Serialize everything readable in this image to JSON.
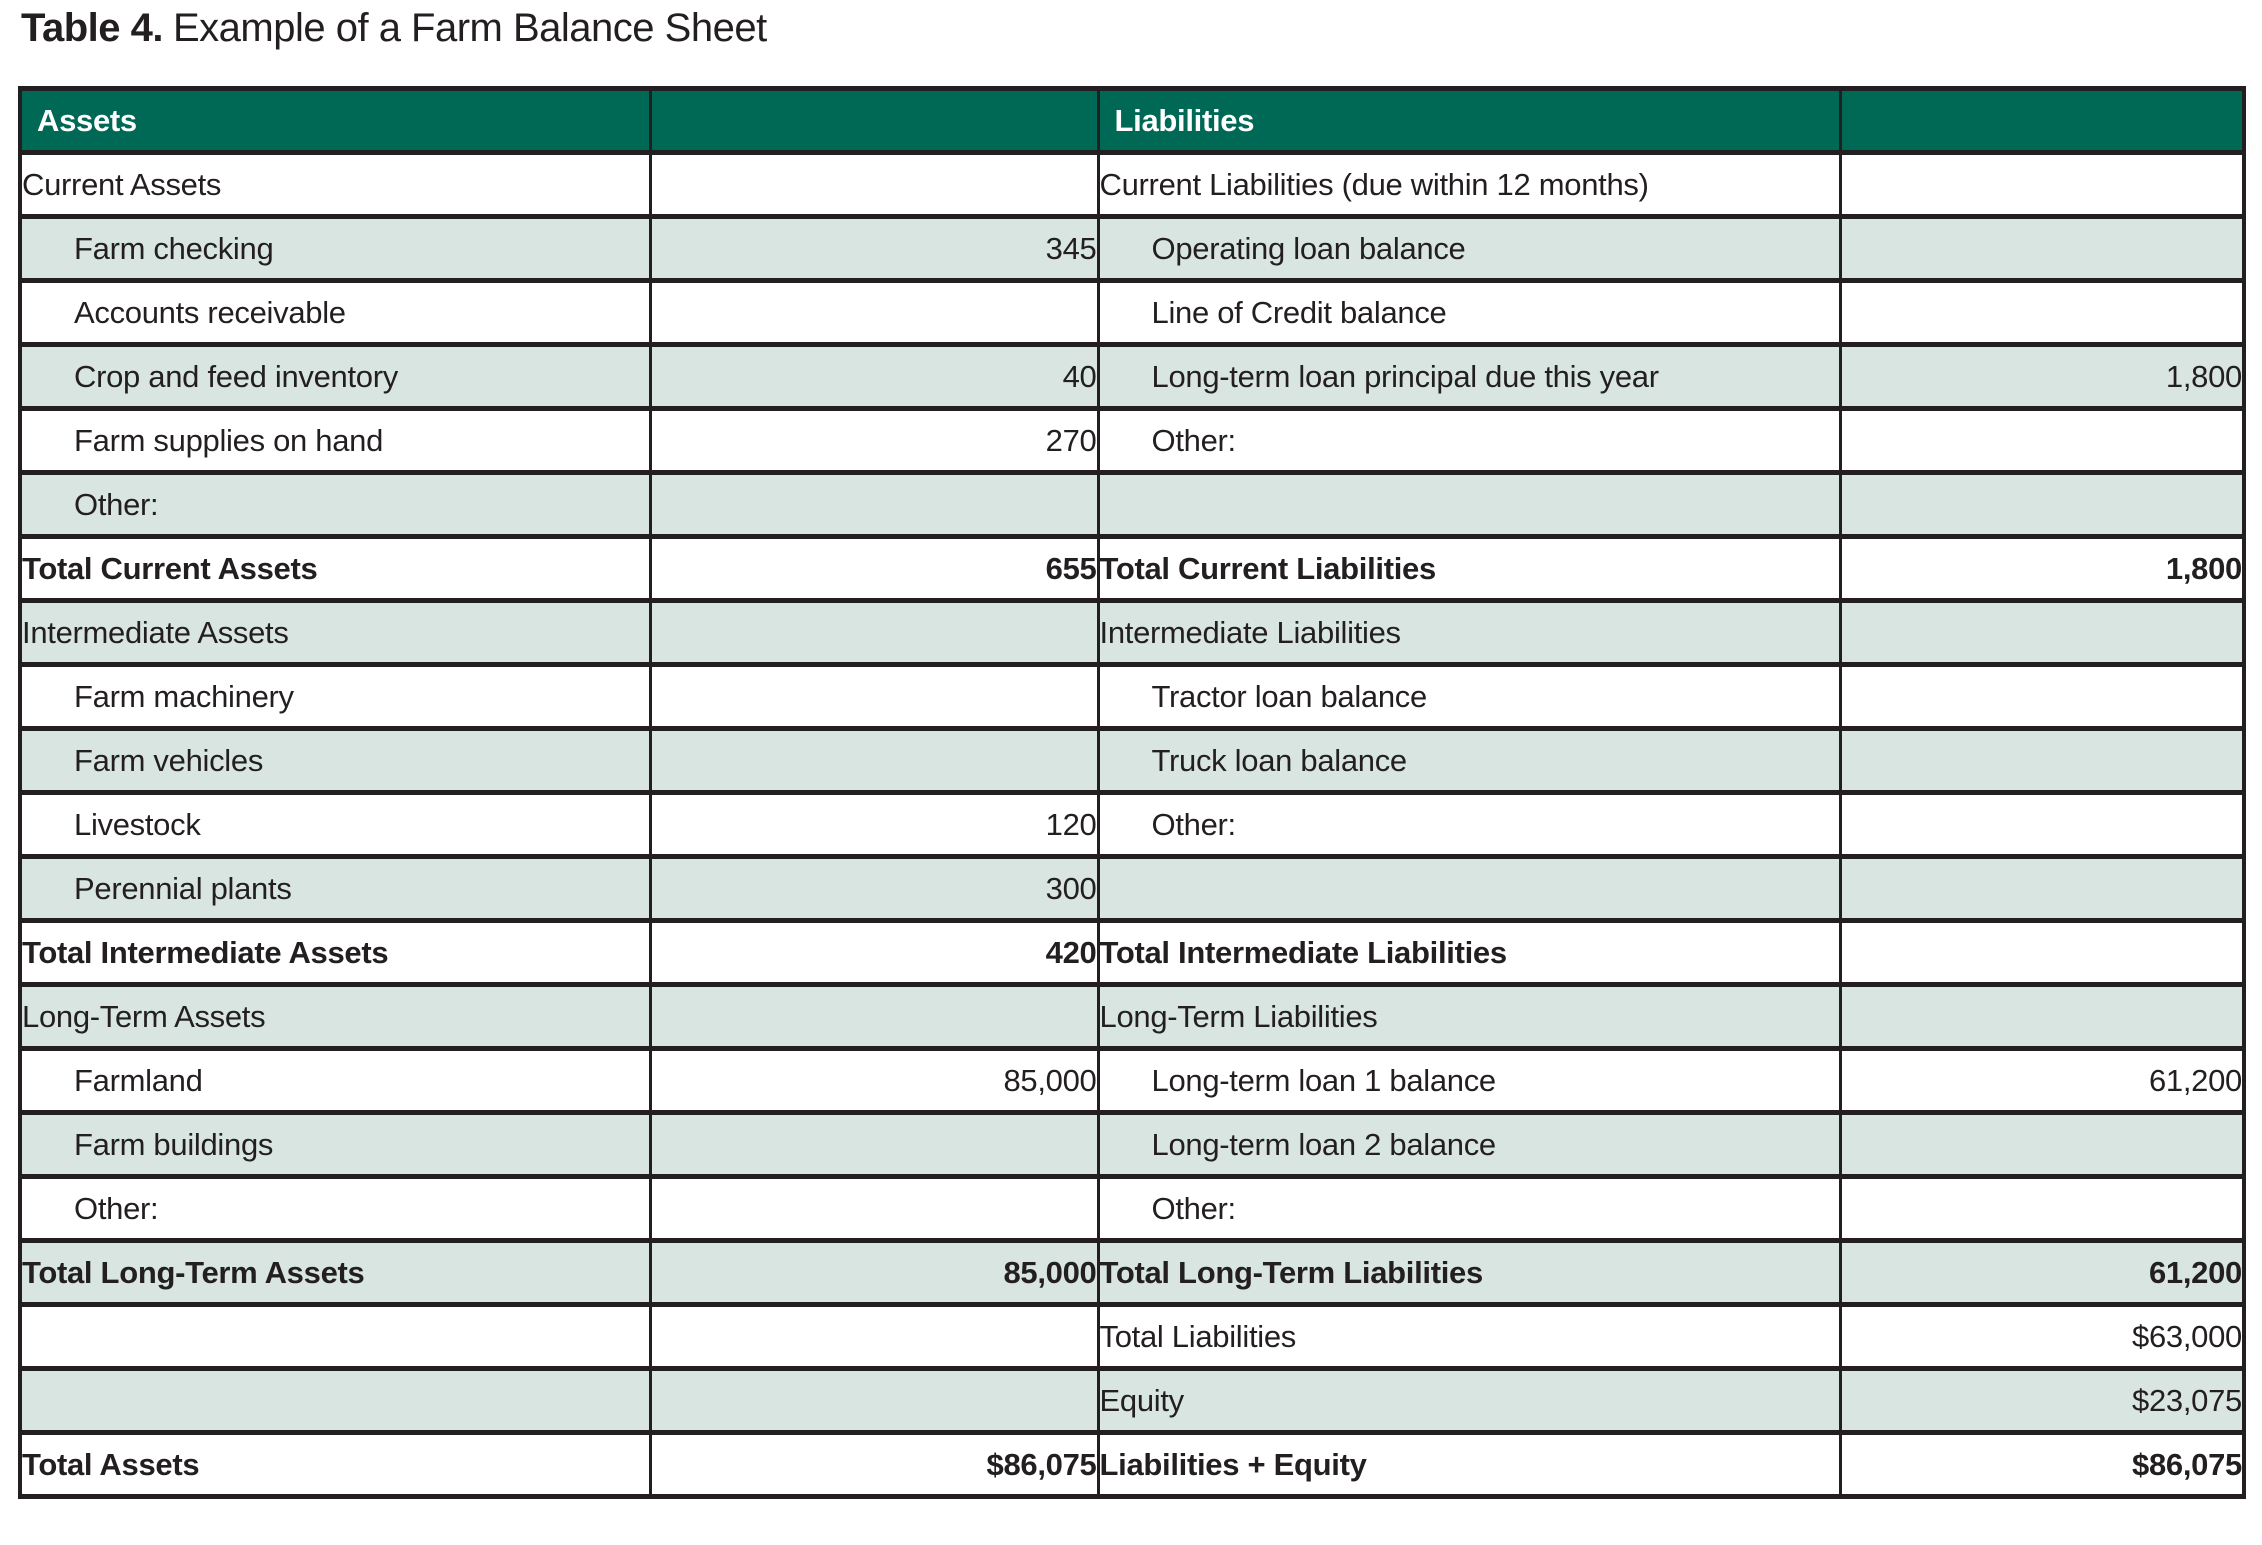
{
  "title": {
    "label": "Table 4.",
    "text": "Example of a Farm Balance Sheet"
  },
  "colors": {
    "header_bg": "#006956",
    "header_text": "#ffffff",
    "shaded_row_bg": "#d8e5e0",
    "plain_row_bg": "#ffffff",
    "border": "#231f20",
    "text": "#231f20"
  },
  "table": {
    "headers": {
      "assets": "Assets",
      "assets_value": "",
      "liabilities": "Liabilities",
      "liabilities_value": ""
    },
    "rows": [
      {
        "asset_label": "Current Assets",
        "asset_indent": false,
        "asset_value": "",
        "liability_label": "Current Liabilities (due within 12 months)",
        "liability_indent": false,
        "liability_value": "",
        "bold": false,
        "shaded": false
      },
      {
        "asset_label": "Farm checking",
        "asset_indent": true,
        "asset_value": "345",
        "liability_label": "Operating loan balance",
        "liability_indent": true,
        "liability_value": "",
        "bold": false,
        "shaded": true
      },
      {
        "asset_label": "Accounts receivable",
        "asset_indent": true,
        "asset_value": "",
        "liability_label": "Line of Credit balance",
        "liability_indent": true,
        "liability_value": "",
        "bold": false,
        "shaded": false
      },
      {
        "asset_label": "Crop and feed inventory",
        "asset_indent": true,
        "asset_value": "40",
        "liability_label": "Long-term loan principal due this year",
        "liability_indent": true,
        "liability_value": "1,800",
        "bold": false,
        "shaded": true
      },
      {
        "asset_label": "Farm supplies on hand",
        "asset_indent": true,
        "asset_value": "270",
        "liability_label": "Other:",
        "liability_indent": true,
        "liability_value": "",
        "bold": false,
        "shaded": false
      },
      {
        "asset_label": "Other:",
        "asset_indent": true,
        "asset_value": "",
        "liability_label": "",
        "liability_indent": false,
        "liability_value": "",
        "bold": false,
        "shaded": true
      },
      {
        "asset_label": "Total Current Assets",
        "asset_indent": false,
        "asset_value": "655",
        "liability_label": "Total Current Liabilities",
        "liability_indent": false,
        "liability_value": "1,800",
        "bold": true,
        "shaded": false
      },
      {
        "asset_label": "Intermediate Assets",
        "asset_indent": false,
        "asset_value": "",
        "liability_label": "Intermediate Liabilities",
        "liability_indent": false,
        "liability_value": "",
        "bold": false,
        "shaded": true
      },
      {
        "asset_label": "Farm machinery",
        "asset_indent": true,
        "asset_value": "",
        "liability_label": "Tractor loan balance",
        "liability_indent": true,
        "liability_value": "",
        "bold": false,
        "shaded": false
      },
      {
        "asset_label": "Farm vehicles",
        "asset_indent": true,
        "asset_value": "",
        "liability_label": "Truck loan balance",
        "liability_indent": true,
        "liability_value": "",
        "bold": false,
        "shaded": true
      },
      {
        "asset_label": "Livestock",
        "asset_indent": true,
        "asset_value": "120",
        "liability_label": "Other:",
        "liability_indent": true,
        "liability_value": "",
        "bold": false,
        "shaded": false
      },
      {
        "asset_label": "Perennial plants",
        "asset_indent": true,
        "asset_value": "300",
        "liability_label": "",
        "liability_indent": false,
        "liability_value": "",
        "bold": false,
        "shaded": true
      },
      {
        "asset_label": "Total Intermediate Assets",
        "asset_indent": false,
        "asset_value": "420",
        "liability_label": "Total Intermediate Liabilities",
        "liability_indent": false,
        "liability_value": "",
        "bold": true,
        "shaded": false
      },
      {
        "asset_label": "Long-Term Assets",
        "asset_indent": false,
        "asset_value": "",
        "liability_label": "Long-Term Liabilities",
        "liability_indent": false,
        "liability_value": "",
        "bold": false,
        "shaded": true
      },
      {
        "asset_label": "Farmland",
        "asset_indent": true,
        "asset_value": "85,000",
        "liability_label": "Long-term loan 1 balance",
        "liability_indent": true,
        "liability_value": "61,200",
        "bold": false,
        "shaded": false
      },
      {
        "asset_label": "Farm buildings",
        "asset_indent": true,
        "asset_value": "",
        "liability_label": "Long-term loan 2 balance",
        "liability_indent": true,
        "liability_value": "",
        "bold": false,
        "shaded": true
      },
      {
        "asset_label": "Other:",
        "asset_indent": true,
        "asset_value": "",
        "liability_label": "Other:",
        "liability_indent": true,
        "liability_value": "",
        "bold": false,
        "shaded": false
      },
      {
        "asset_label": "Total Long-Term Assets",
        "asset_indent": false,
        "asset_value": "85,000",
        "liability_label": "Total Long-Term Liabilities",
        "liability_indent": false,
        "liability_value": "61,200",
        "bold": true,
        "shaded": true
      },
      {
        "asset_label": "",
        "asset_indent": false,
        "asset_value": "",
        "liability_label": "Total Liabilities",
        "liability_indent": false,
        "liability_value": "$63,000",
        "bold": false,
        "shaded": false
      },
      {
        "asset_label": "",
        "asset_indent": false,
        "asset_value": "",
        "liability_label": "Equity",
        "liability_indent": false,
        "liability_value": "$23,075",
        "bold": false,
        "shaded": true
      },
      {
        "asset_label": "Total Assets",
        "asset_indent": false,
        "asset_value": "$86,075",
        "liability_label": "Liabilities + Equity",
        "liability_indent": false,
        "liability_value": "$86,075",
        "bold": true,
        "shaded": false
      }
    ]
  }
}
